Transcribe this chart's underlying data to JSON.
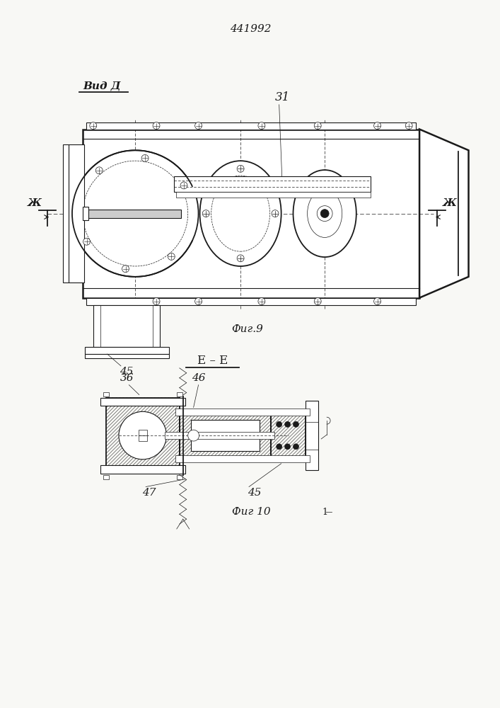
{
  "title_number": "441992",
  "fig9_label": "Фиг.9",
  "fig10_label": "Фиг 10",
  "view_label": "Вид Д",
  "section_label": "Е – Е",
  "label_31": "31",
  "label_45_fig9": "45",
  "label_36": "36",
  "label_46": "46",
  "label_47": "47",
  "label_45_fig10": "45",
  "zh_left": "Ж",
  "zh_right": "Ж",
  "bg_color": "#f8f8f5",
  "line_color": "#1a1a1a"
}
